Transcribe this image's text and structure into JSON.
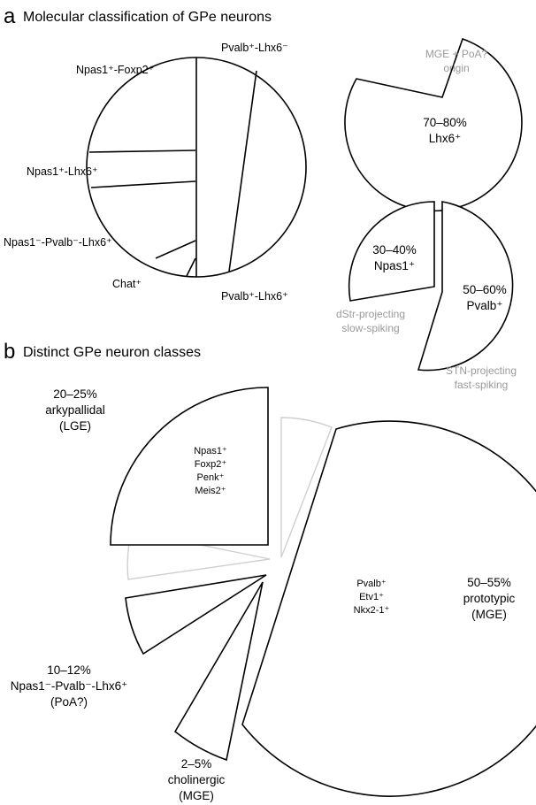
{
  "panel_a": {
    "letter": "a",
    "title": "Molecular classification of GPe neurons",
    "pie": {
      "labels": {
        "pvalb_pos_lhx6_neg": "Pvalb⁺-Lhx6⁻",
        "npas1_foxp2": "Npas1⁺-Foxp2⁺",
        "npas1_lhx6": "Npas1⁺-Lhx6⁺",
        "npas1_neg_pvalb_neg_lhx6": "Npas1⁻-Pvalb⁻-Lhx6⁺",
        "chat": "Chat⁺",
        "pvalb_lhx6": "Pvalb⁺-Lhx6⁺"
      }
    },
    "lhx6": {
      "origin_line1": "MGE + PoA?",
      "origin_line2": "origin",
      "pct": "70–80%",
      "name": "Lhx6⁺"
    },
    "split": {
      "npas1_pct": "30–40%",
      "npas1_name": "Npas1⁺",
      "pvalb_pct": "50–60%",
      "pvalb_name": "Pvalb⁺",
      "dstr_line1": "dStr-projecting",
      "dstr_line2": "slow-spiking",
      "stn_line1": "STN-projecting",
      "stn_line2": "fast-spiking"
    }
  },
  "panel_b": {
    "letter": "b",
    "title": "Distinct GPe neuron classes",
    "arky": {
      "pct": "20–25%",
      "name": "arkypallidal",
      "origin": "(LGE)",
      "markers": [
        "Npas1⁺",
        "Foxp2⁺",
        "Penk⁺",
        "Meis2⁺"
      ]
    },
    "proto": {
      "pct": "50–55%",
      "name": "prototypic",
      "origin": "(MGE)",
      "markers": [
        "Pvalb⁺",
        "Etv1⁺",
        "Nkx2-1⁺"
      ]
    },
    "npas1neg": {
      "pct": "10–12%",
      "name": "Npas1⁻-Pvalb⁻-Lhx6⁺",
      "origin": "(PoA?)"
    },
    "chol": {
      "pct": "2–5%",
      "name": "cholinergic",
      "origin": "(MGE)"
    }
  }
}
